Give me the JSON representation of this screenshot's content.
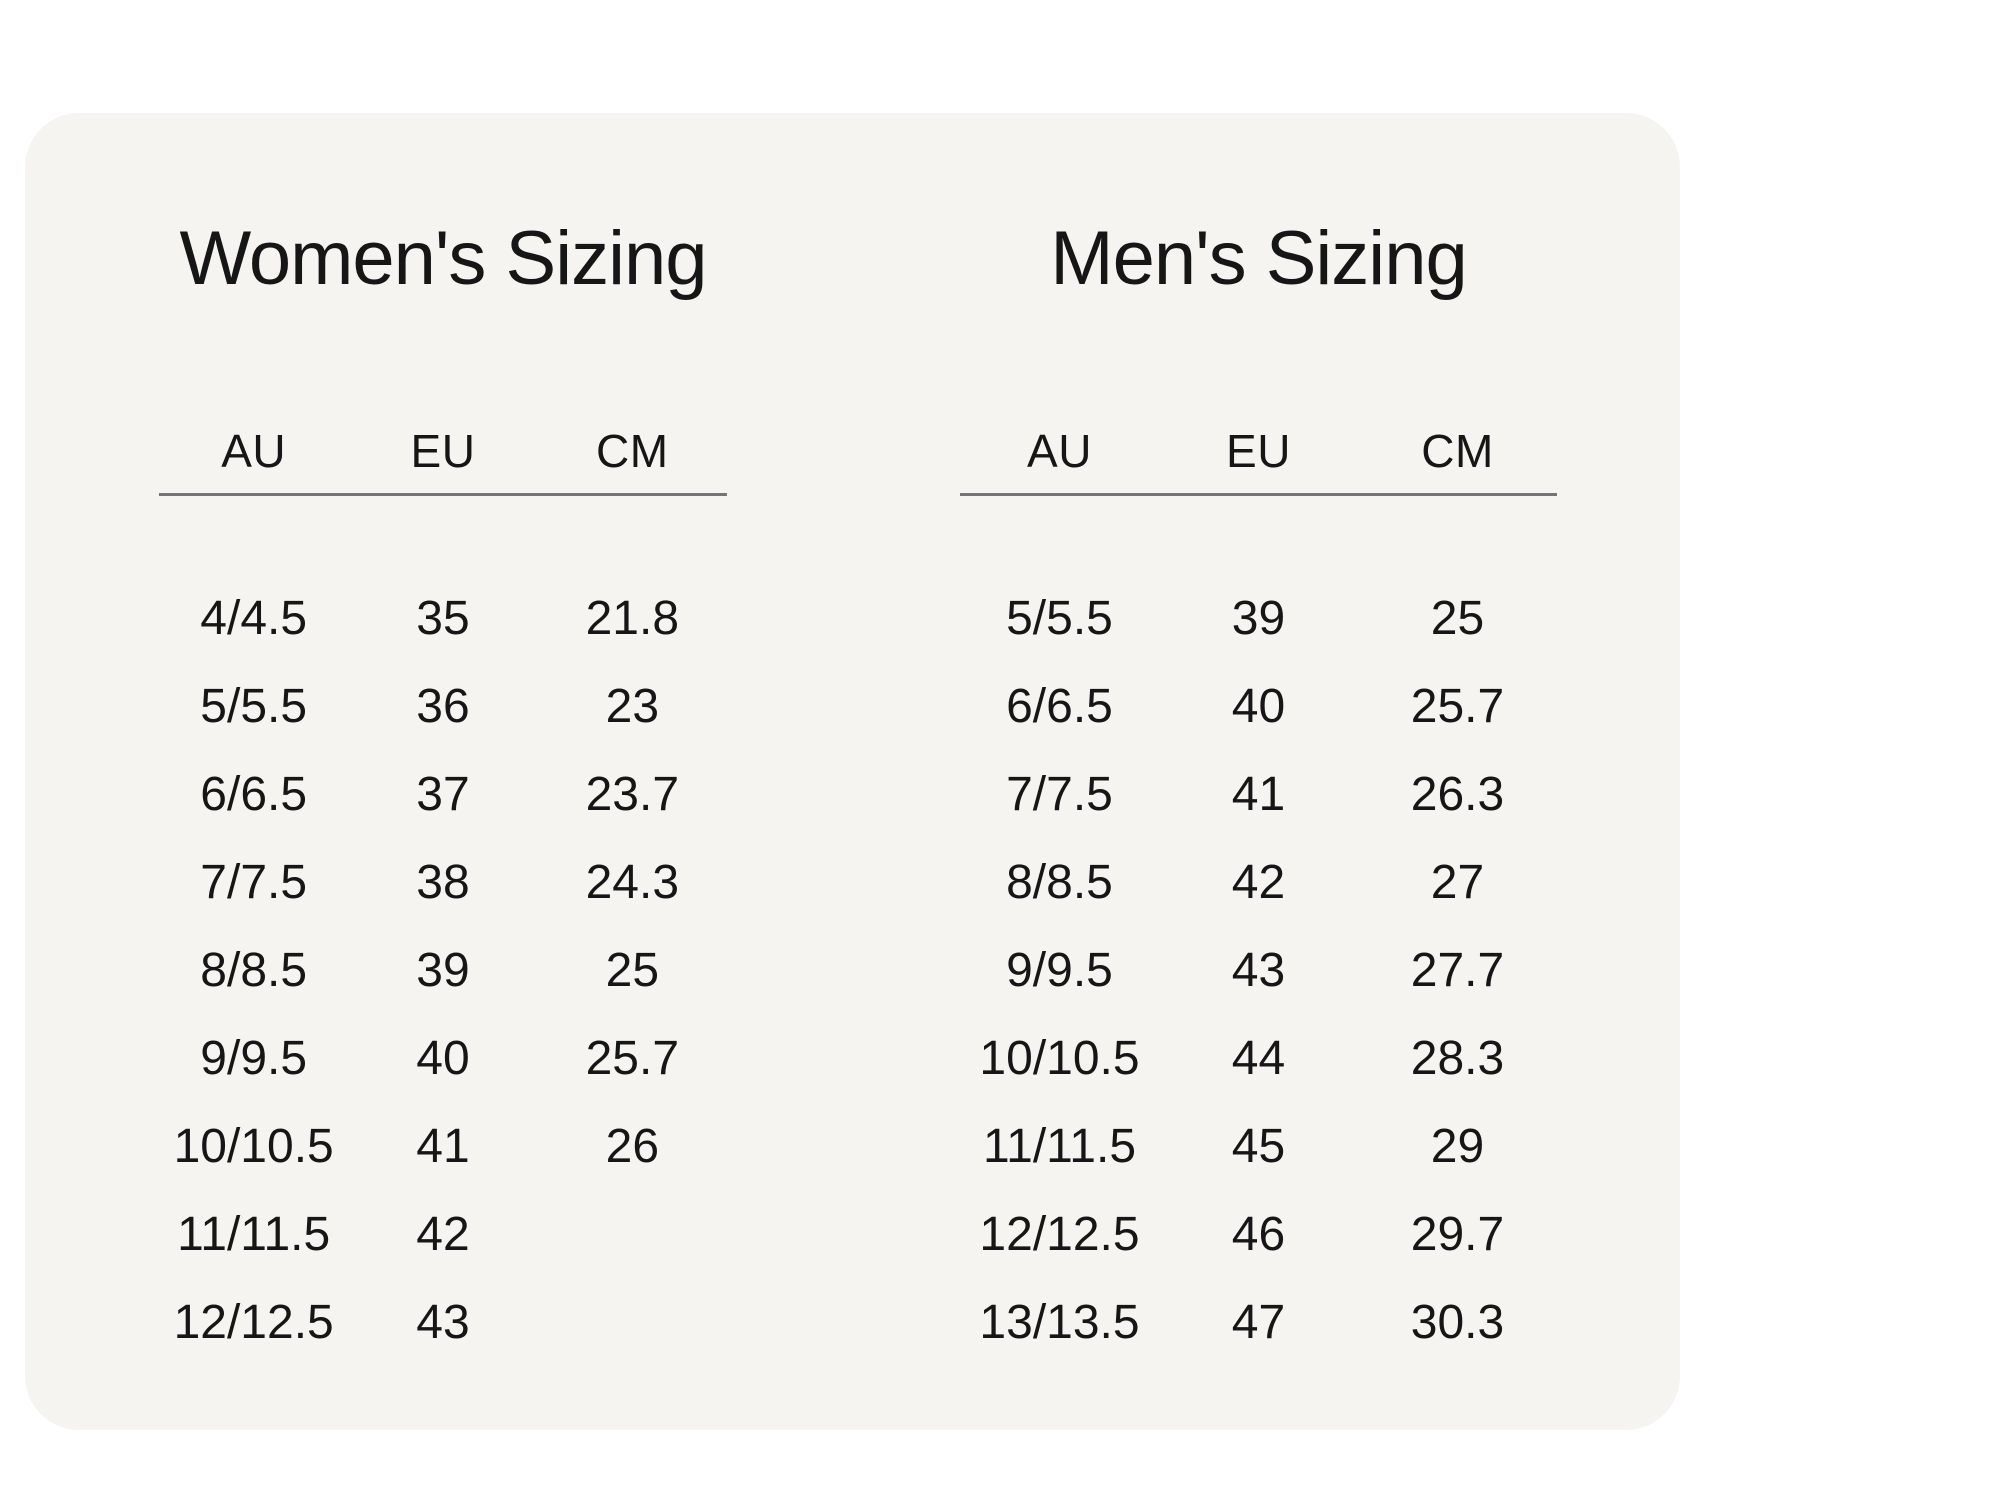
{
  "page": {
    "background_color": "#ffffff",
    "card_background_color": "#f5f4f0",
    "text_color": "#161616",
    "rule_color": "#757575"
  },
  "women": {
    "title": "Women's Sizing",
    "columns": [
      "AU",
      "EU",
      "CM"
    ],
    "rows": [
      {
        "au": "4/4.5",
        "eu": "35",
        "cm": "21.8"
      },
      {
        "au": "5/5.5",
        "eu": "36",
        "cm": "23"
      },
      {
        "au": "6/6.5",
        "eu": "37",
        "cm": "23.7"
      },
      {
        "au": "7/7.5",
        "eu": "38",
        "cm": "24.3"
      },
      {
        "au": "8/8.5",
        "eu": "39",
        "cm": "25"
      },
      {
        "au": "9/9.5",
        "eu": "40",
        "cm": "25.7"
      },
      {
        "au": "10/10.5",
        "eu": "41",
        "cm": "26"
      },
      {
        "au": "11/11.5",
        "eu": "42",
        "cm": ""
      },
      {
        "au": "12/12.5",
        "eu": "43",
        "cm": ""
      }
    ]
  },
  "men": {
    "title": "Men's Sizing",
    "columns": [
      "AU",
      "EU",
      "CM"
    ],
    "rows": [
      {
        "au": "5/5.5",
        "eu": "39",
        "cm": "25"
      },
      {
        "au": "6/6.5",
        "eu": "40",
        "cm": "25.7"
      },
      {
        "au": "7/7.5",
        "eu": "41",
        "cm": "26.3"
      },
      {
        "au": "8/8.5",
        "eu": "42",
        "cm": "27"
      },
      {
        "au": "9/9.5",
        "eu": "43",
        "cm": "27.7"
      },
      {
        "au": "10/10.5",
        "eu": "44",
        "cm": "28.3"
      },
      {
        "au": "11/11.5",
        "eu": "45",
        "cm": "29"
      },
      {
        "au": "12/12.5",
        "eu": "46",
        "cm": "29.7"
      },
      {
        "au": "13/13.5",
        "eu": "47",
        "cm": "30.3"
      }
    ]
  }
}
